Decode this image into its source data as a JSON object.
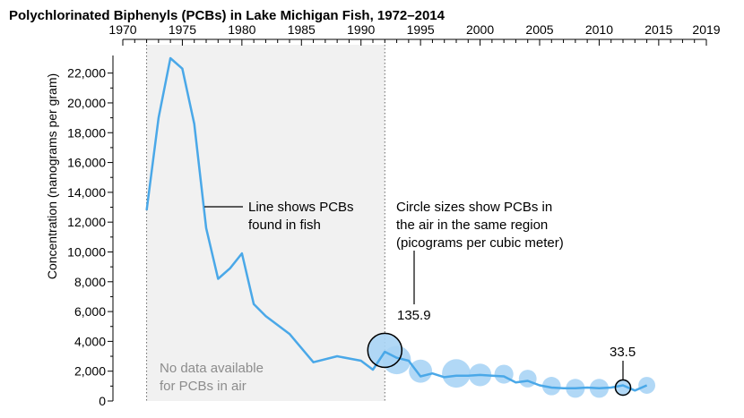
{
  "chart_data": {
    "type": "line",
    "title": "Polychlorinated Biphenyls (PCBs) in Lake Michigan Fish, 1972–2014",
    "ylabel": "Concentration (nanograms per gram)",
    "xlim": [
      1970,
      2019
    ],
    "ylim": [
      0,
      23000
    ],
    "x_ticks": [
      1970,
      1975,
      1980,
      1985,
      1990,
      1995,
      2000,
      2005,
      2010,
      2015,
      2019
    ],
    "y_ticks": [
      0,
      2000,
      4000,
      6000,
      8000,
      10000,
      12000,
      14000,
      16000,
      18000,
      20000,
      22000
    ],
    "y_tick_labels": [
      "0",
      "2,000",
      "4,000",
      "6,000",
      "8,000",
      "10,000",
      "12,000",
      "14,000",
      "16,000",
      "18,000",
      "20,000",
      "22,000"
    ],
    "fish_series": {
      "x": [
        1972,
        1973,
        1974,
        1975,
        1976,
        1977,
        1978,
        1979,
        1980,
        1981,
        1982,
        1984,
        1986,
        1988,
        1990,
        1991,
        1992,
        1993,
        1994,
        1995,
        1996,
        1997,
        1998,
        1999,
        2000,
        2001,
        2002,
        2003,
        2004,
        2005,
        2006,
        2007,
        2008,
        2009,
        2010,
        2011,
        2012,
        2013,
        2014
      ],
      "y": [
        12800,
        19000,
        23000,
        22300,
        18600,
        11600,
        8200,
        8900,
        9900,
        6500,
        5700,
        4500,
        2600,
        3000,
        2700,
        2100,
        3300,
        2900,
        2700,
        1650,
        1850,
        1600,
        1700,
        1700,
        1750,
        1700,
        1650,
        1250,
        1350,
        1050,
        900,
        850,
        850,
        900,
        850,
        900,
        1050,
        700,
        1050
      ]
    },
    "air_series": {
      "x": [
        1992,
        1993,
        1995,
        1998,
        2000,
        2002,
        2004,
        2006,
        2008,
        2010,
        2012,
        2014
      ],
      "y": [
        3400,
        2750,
        2000,
        1850,
        1750,
        1800,
        1500,
        1000,
        850,
        850,
        900,
        1050
      ],
      "values": [
        135.9,
        95,
        63,
        95,
        60,
        42,
        37,
        40,
        42,
        42,
        33.5,
        33.5
      ]
    },
    "shaded_range": [
      1972,
      1992
    ],
    "annotations": {
      "line_label": [
        "Line shows PCBs",
        "found in fish"
      ],
      "circle_label": [
        "Circle sizes show PCBs in",
        "the air in the same region",
        "(picograms per cubic meter)"
      ],
      "no_data": [
        "No data available",
        "for PCBs in air"
      ],
      "callout_high": "135.9",
      "callout_low": "33.5"
    },
    "colors": {
      "line": "#4aa8e8",
      "bubble": "#a9d4f5",
      "shade": "#f1f1f1",
      "callout_stroke": "#000000"
    },
    "grid": false,
    "legend": "none"
  }
}
